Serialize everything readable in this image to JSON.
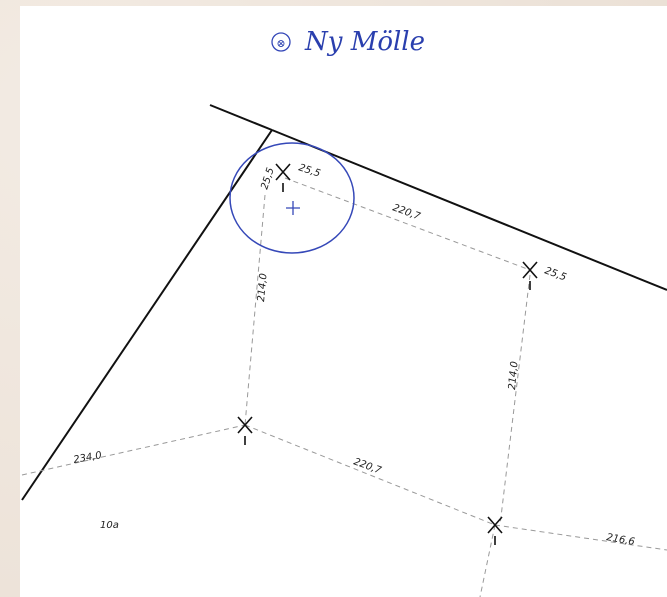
{
  "annotation": {
    "symbol": "⊗",
    "title": "Ny Mölle"
  },
  "labels": [
    "25,5",
    "25,5",
    "220,7",
    "25,5",
    "214,0",
    "214,0",
    "234,0",
    "220,7",
    "216,6"
  ],
  "parcel": "10a"
}
